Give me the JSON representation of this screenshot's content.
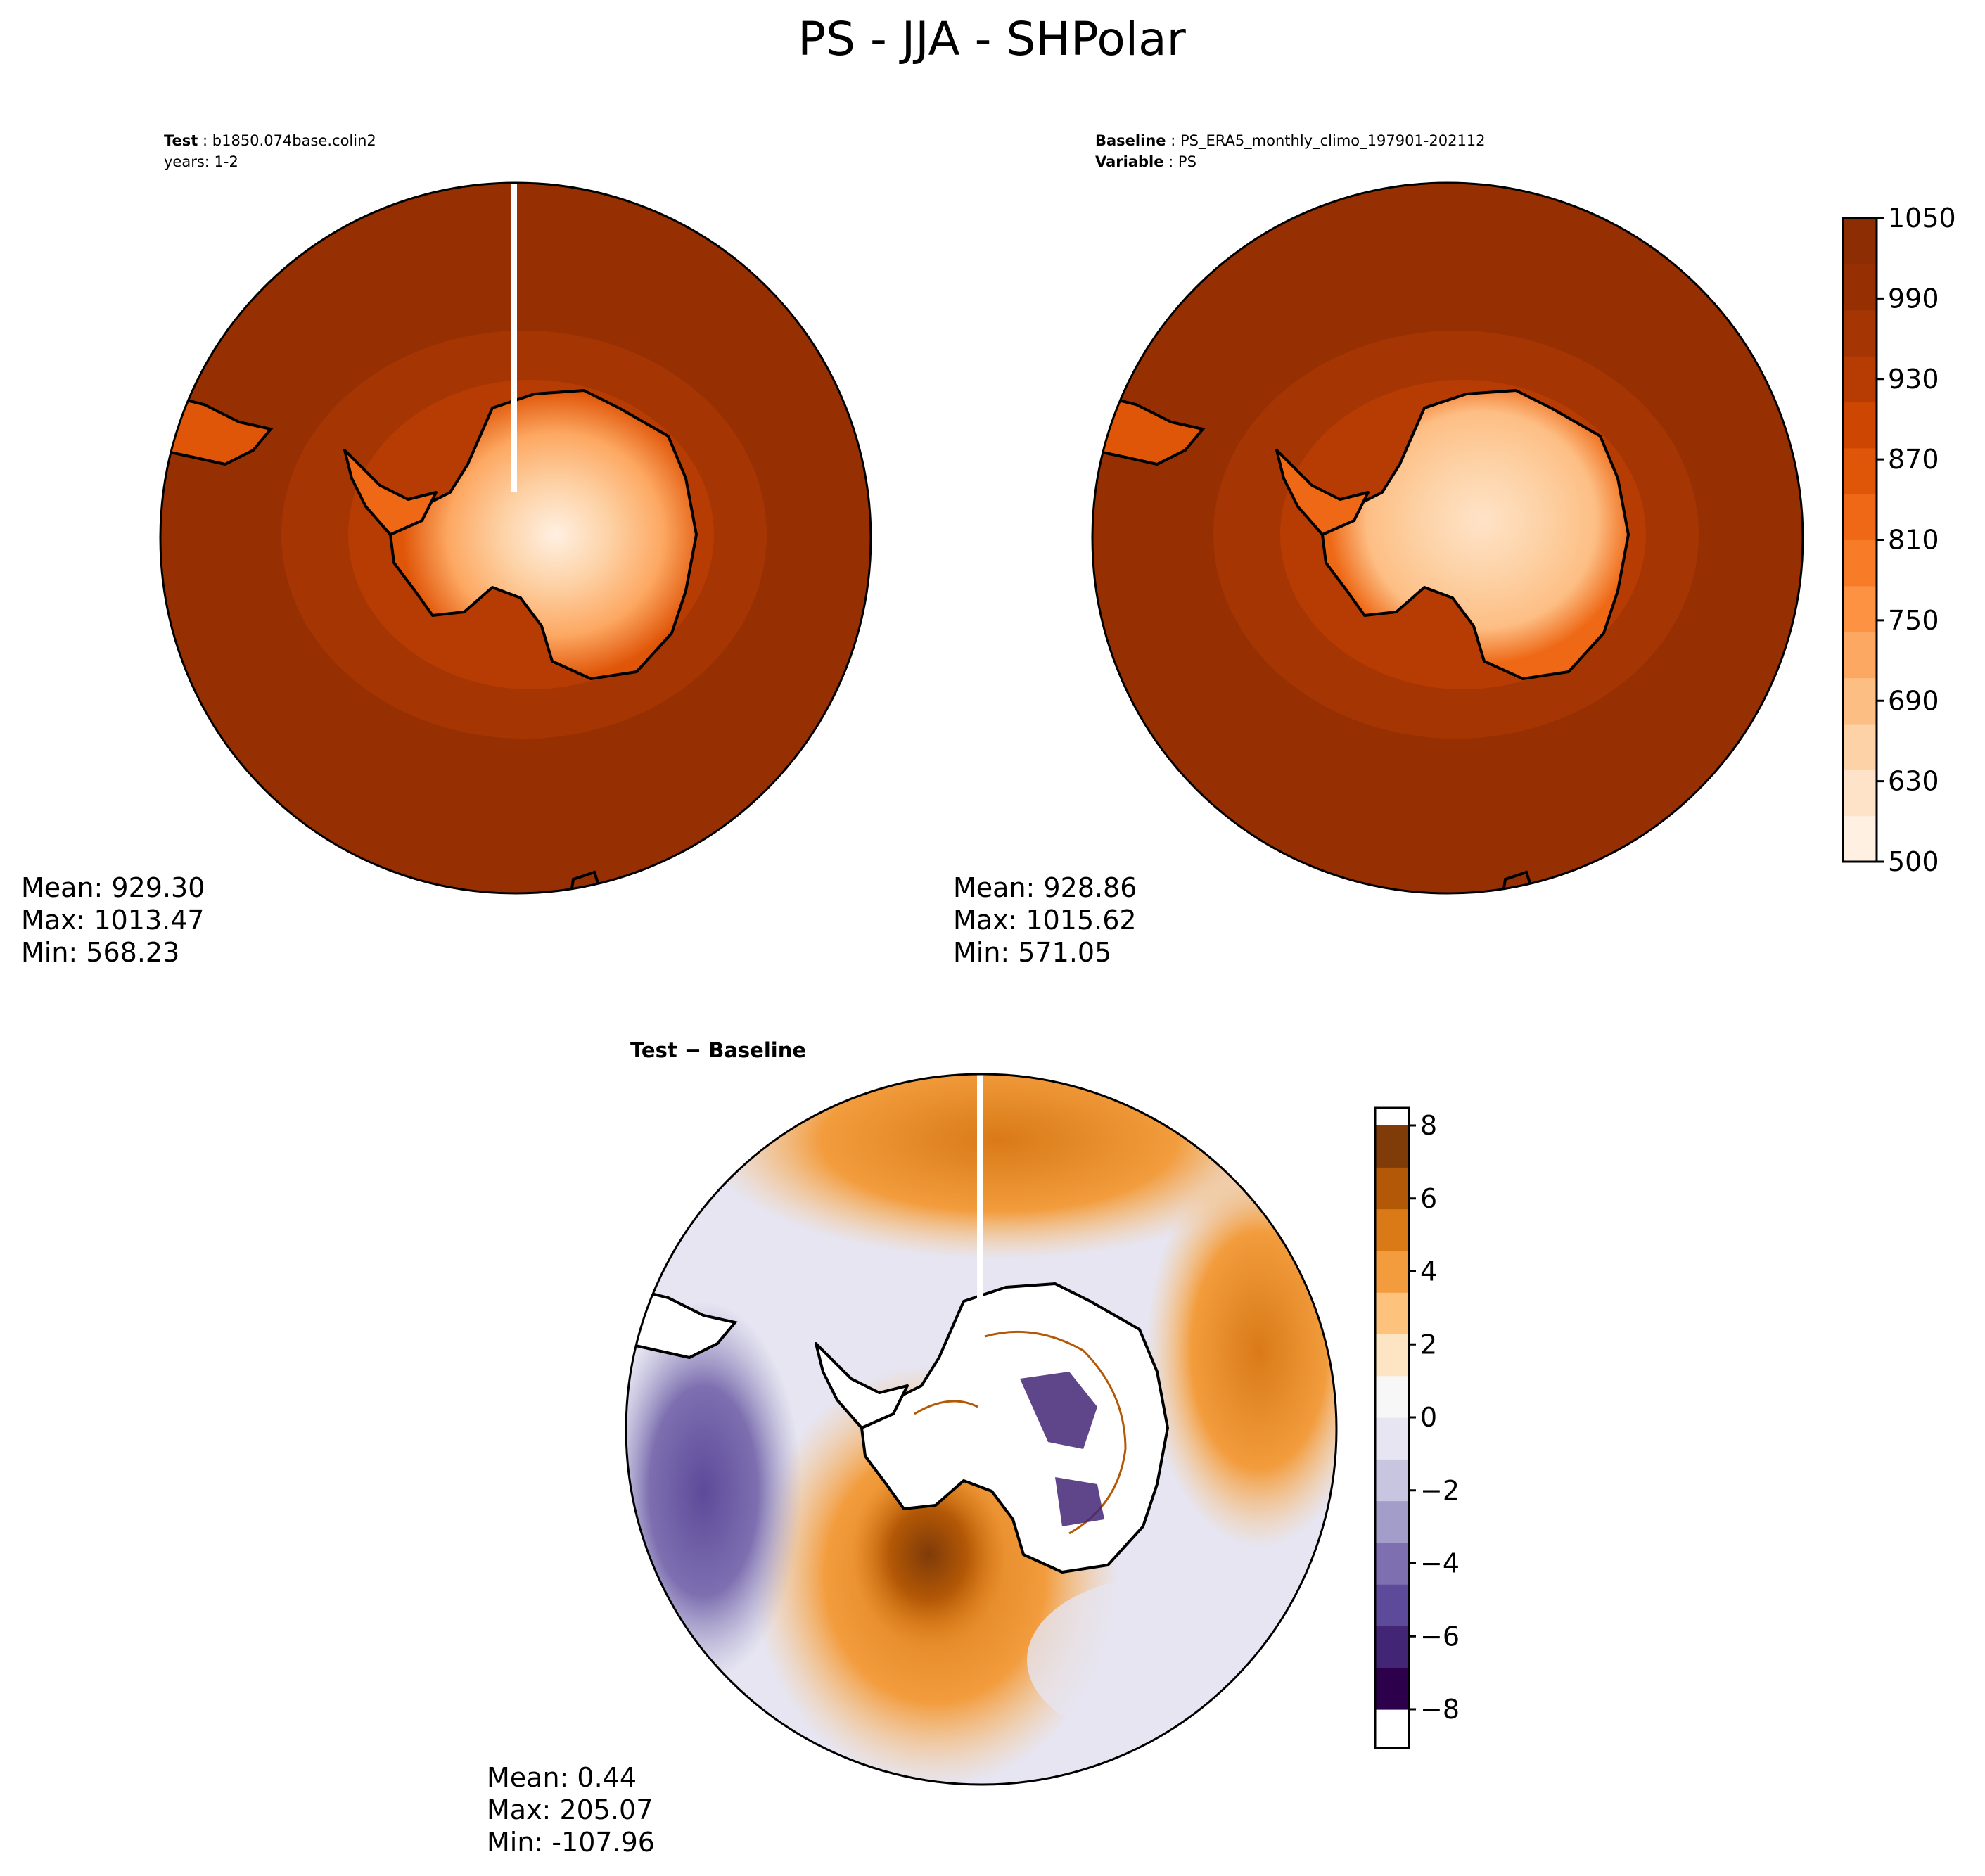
{
  "title": "PS - JJA - SHPolar",
  "panels": [
    {
      "id": "test",
      "header": [
        {
          "key": "Test",
          "sep": " : ",
          "value": "b1850.074base.colin2"
        },
        {
          "key": "",
          "sep": "",
          "value": "years: 1-2"
        }
      ],
      "stats": {
        "mean": "Mean: 929.30",
        "max": "Max: 1013.47",
        "min": "Min: 568.23"
      }
    },
    {
      "id": "baseline",
      "header": [
        {
          "key": "Baseline",
          "sep": " : ",
          "value": "PS_ERA5_monthly_climo_197901-202112"
        },
        {
          "key": "Variable",
          "sep": " : ",
          "value": "PS"
        }
      ],
      "stats": {
        "mean": "Mean: 928.86",
        "max": "Max: 1015.62",
        "min": "Min: 571.05"
      }
    },
    {
      "id": "difference",
      "header": [
        {
          "key": "Test",
          "sep": " − ",
          "value": "Baseline"
        }
      ],
      "stats": {
        "mean": "Mean:  0.44",
        "max": "Max: 205.07",
        "min": "Min: -107.96"
      }
    }
  ],
  "colorbars": {
    "field": {
      "ticks": [
        "1050",
        "990",
        "930",
        "870",
        "810",
        "750",
        "690",
        "630",
        "500"
      ],
      "colors": [
        "#fff0e2",
        "#fee3c8",
        "#fdd2a6",
        "#fdbe84",
        "#fda862",
        "#fd9243",
        "#f87c28",
        "#ee6815",
        "#e05609",
        "#cd4703",
        "#b73c03",
        "#a53603",
        "#963003",
        "#8c2d04"
      ]
    },
    "diff": {
      "ticks": [
        "8",
        "6",
        "4",
        "2",
        "0",
        "−2",
        "−4",
        "−6",
        "−8"
      ],
      "colors": [
        "#2d004b",
        "#432576",
        "#5e4a9a",
        "#7d6fb0",
        "#a29ec9",
        "#c8c5e0",
        "#e6e5f1",
        "#f7f7f7",
        "#fde4c2",
        "#fdc37c",
        "#f29c3d",
        "#d97a17",
        "#b35806",
        "#7f3b08"
      ]
    }
  }
}
